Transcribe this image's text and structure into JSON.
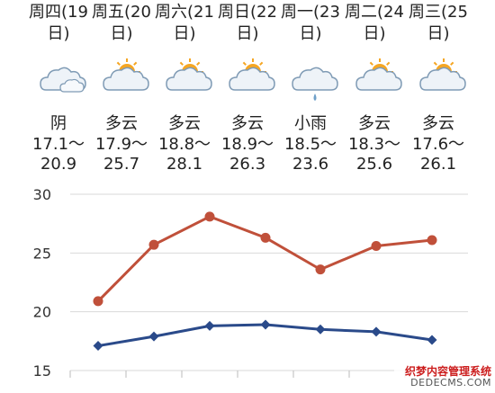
{
  "days": [
    {
      "head": "周四(19\n日)",
      "icon": "cloud-icon",
      "desc": "阴",
      "low": "17.1～",
      "high": "20.9"
    },
    {
      "head": "周五(20\n日)",
      "icon": "sun-cloud-icon",
      "desc": "多云",
      "low": "17.9～",
      "high": "25.7"
    },
    {
      "head": "周六(21\n日)",
      "icon": "sun-cloud-icon",
      "desc": "多云",
      "low": "18.8～",
      "high": "28.1"
    },
    {
      "head": "周日(22\n日)",
      "icon": "sun-cloud-icon",
      "desc": "多云",
      "low": "18.9～",
      "high": "26.3"
    },
    {
      "head": "周一(23\n日)",
      "icon": "rain-cloud-icon",
      "desc": "小雨",
      "low": "18.5～",
      "high": "23.6"
    },
    {
      "head": "周二(24\n日)",
      "icon": "sun-cloud-icon",
      "desc": "多云",
      "low": "18.3～",
      "high": "25.6"
    },
    {
      "head": "周三(25\n日)",
      "icon": "sun-cloud-icon",
      "desc": "多云",
      "low": "17.6～",
      "high": "26.1"
    }
  ],
  "chart_data": {
    "type": "line",
    "categories": [
      "周四",
      "周五",
      "周六",
      "周日",
      "周一",
      "周二",
      "周三"
    ],
    "series": [
      {
        "values": [
          20.9,
          25.7,
          28.1,
          26.3,
          23.6,
          25.6,
          26.1
        ],
        "color": "#c0503a",
        "marker": "circle"
      },
      {
        "values": [
          17.1,
          17.9,
          18.8,
          18.9,
          18.5,
          18.3,
          17.6
        ],
        "color": "#2a4a8a",
        "marker": "diamond"
      }
    ],
    "yticks": [
      15,
      20,
      25,
      30
    ],
    "ylim": [
      15,
      30
    ],
    "grid": true
  },
  "colors": {
    "sun": "#f5a623",
    "cloud_fill": "#eef3f8",
    "cloud_stroke": "#7f9bb5",
    "rain": "#6fa0c8"
  },
  "watermark": {
    "line1": "织梦内容管理系统",
    "line2": "DEDECMS.COM"
  }
}
